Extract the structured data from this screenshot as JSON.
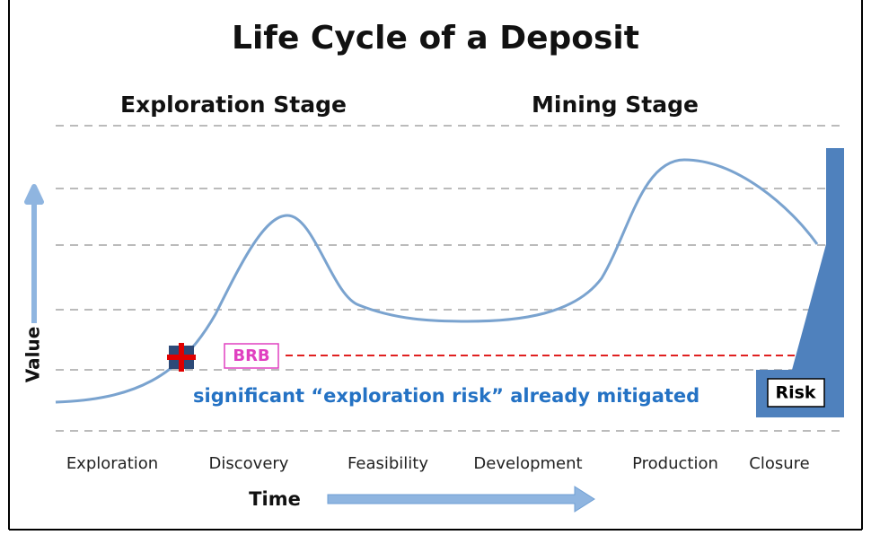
{
  "title": "Life Cycle of a Deposit",
  "stages": [
    "Exploration Stage",
    "Mining Stage"
  ],
  "phases": [
    "Exploration",
    "Discovery",
    "Feasibility",
    "Development",
    "Production",
    "Closure"
  ],
  "y_axis_label": "Value",
  "x_axis_label": "Time",
  "marker_label": "BRB",
  "annotation": "significant “exploration risk” already mitigated",
  "risk_label": "Risk"
}
